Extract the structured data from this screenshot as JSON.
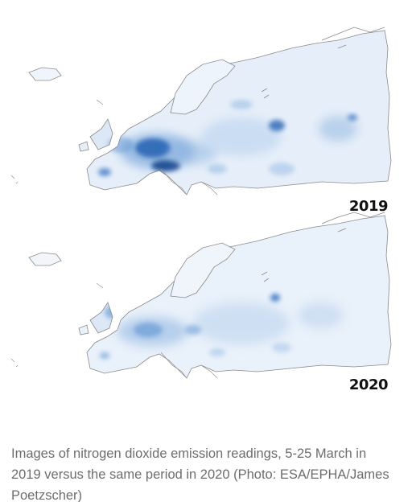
{
  "maps": [
    {
      "year": "2019",
      "intensity": "high"
    },
    {
      "year": "2020",
      "intensity": "reduced"
    }
  ],
  "caption": "Images of nitrogen dioxide emission readings, 5-25 March in 2019 versus the same period in 2020 (Photo: ESA/EPHA/James Poetzscher)",
  "colors": {
    "background": "#ffffff",
    "land_base": "#e6eff9",
    "low_emission": "#b9d2ee",
    "mid_emission": "#5b93d1",
    "high_emission": "#0b3f8a",
    "coastline": "#8a8a8a",
    "caption_text": "#6d6d6d"
  }
}
